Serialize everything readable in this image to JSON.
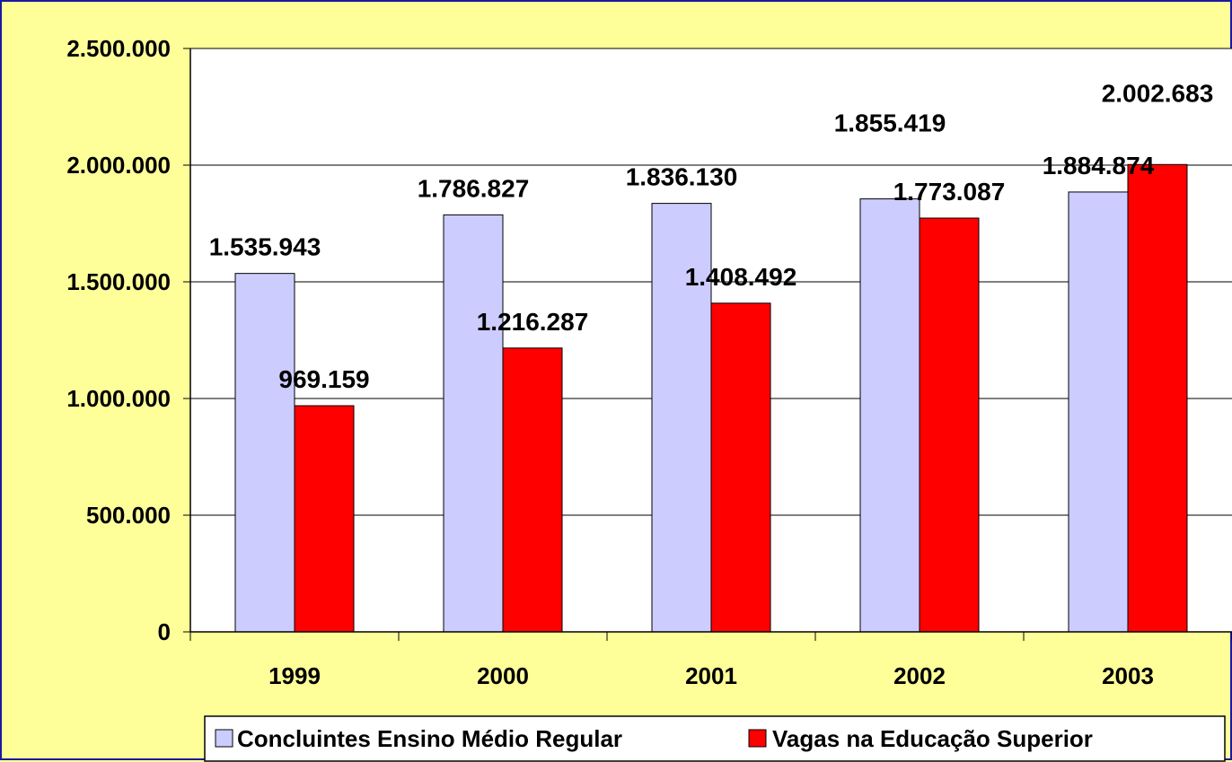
{
  "chart_data": {
    "type": "bar",
    "categories": [
      "1999",
      "2000",
      "2001",
      "2002",
      "2003"
    ],
    "series": [
      {
        "name": "Concluintes Ensino Médio Regular",
        "values": [
          1535943,
          1786827,
          1836130,
          1855419,
          1884874
        ],
        "labels": [
          "1.535.943",
          "1.786.827",
          "1.836.130",
          "1.855.419",
          "1.884.874"
        ],
        "color": "#ccccff"
      },
      {
        "name": "Vagas na Educação Superior",
        "values": [
          969159,
          1216287,
          1408492,
          1773087,
          2002683
        ],
        "labels": [
          "969.159",
          "1.216.287",
          "1.408.492",
          "1.773.087",
          "2.002.683"
        ],
        "color": "#ff0000"
      }
    ],
    "yticks": [
      0,
      500000,
      1000000,
      1500000,
      2000000,
      2500000
    ],
    "ytick_labels": [
      "0",
      "500.000",
      "1.000.000",
      "1.500.000",
      "2.000.000",
      "2.500.000"
    ],
    "ylim": [
      0,
      2500000
    ],
    "grid": true,
    "legend": "bottom",
    "plot_background": "#ffffff",
    "chart_background": "#ffff99",
    "border_color": "#1a1aa0"
  }
}
